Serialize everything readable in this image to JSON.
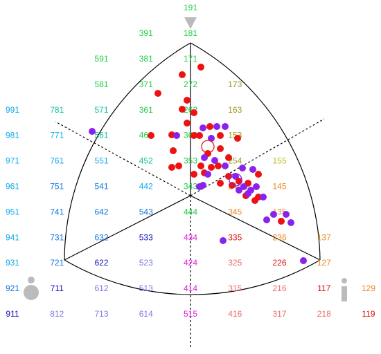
{
  "chart_data": {
    "type": "scatter",
    "xlim": [
      -100,
      100
    ],
    "ylim": [
      -100,
      100
    ],
    "series": [
      {
        "color": "#ee1111",
        "hollow": false,
        "x": [
          -6,
          7.5,
          -23.5,
          -2.5,
          -6,
          2.5,
          -2.5,
          -13.5,
          -28.5,
          14,
          2.5,
          6.5,
          21.5,
          34,
          -12.5,
          12.5,
          21.5,
          27.5,
          -8.5,
          -13.5,
          7.5,
          15,
          2.5,
          10,
          20,
          21.5,
          27.5,
          30,
          35,
          41.5,
          49,
          49,
          40,
          46.5,
          65.5
        ],
        "values": [
          87.5,
          93,
          74,
          69,
          62.5,
          60,
          52.5,
          44,
          43.5,
          50,
          43.5,
          43.5,
          43.5,
          41.5,
          32.5,
          30.5,
          34,
          27.5,
          21.5,
          20.5,
          21.5,
          20.5,
          15.5,
          16.5,
          21.5,
          9,
          14,
          7.5,
          10.5,
          9,
          15.5,
          -1,
          0,
          -3.5,
          -18.5
        ]
      },
      {
        "color": "#8a22ee",
        "hollow": false,
        "x": [
          -71,
          -10,
          9,
          19,
          25,
          15,
          17.5,
          10,
          25,
          9,
          12.5,
          37.5,
          45,
          32.5,
          38.5,
          43.5,
          47.5,
          41.5,
          35,
          52.5,
          55,
          60,
          69,
          72.5,
          23.5,
          81.5,
          6.5
        ],
        "values": [
          46.5,
          43.5,
          49,
          50,
          50,
          41.5,
          25.5,
          27.5,
          21.5,
          7.5,
          15.5,
          20,
          19,
          14,
          6.5,
          4,
          6.5,
          1.5,
          4,
          -1,
          -17.5,
          -13.5,
          -13.5,
          -19.5,
          -32.5,
          -47,
          6.5
        ]
      },
      {
        "color": "#ee1111",
        "hollow": true,
        "x": [
          12.5
        ],
        "values": [
          35.5
        ]
      },
      {
        "color": "#8a22ee",
        "hollow": true,
        "x": [
          32.5
        ],
        "values": [
          11.5
        ]
      }
    ],
    "labels": [
      [
        null,
        null,
        null,
        null,
        {
          "text": "191",
          "color": "#22cc44"
        },
        null,
        null,
        null,
        null
      ],
      [
        null,
        null,
        null,
        {
          "text": "391",
          "color": "#22cc44"
        },
        {
          "text": "181",
          "color": "#22cc44"
        },
        null,
        null,
        null,
        null
      ],
      [
        null,
        null,
        {
          "text": "591",
          "color": "#22cc44"
        },
        {
          "text": "381",
          "color": "#22cc44"
        },
        {
          "text": "171",
          "color": "#22cc44"
        },
        null,
        null,
        null,
        null
      ],
      [
        null,
        null,
        {
          "text": "581",
          "color": "#22cc44"
        },
        {
          "text": "371",
          "color": "#22cc44"
        },
        {
          "text": "272",
          "color": "#22cc44"
        },
        {
          "text": "173",
          "color": "#999922"
        },
        null,
        null,
        null
      ],
      [
        {
          "text": "991",
          "color": "#11aaee"
        },
        {
          "text": "781",
          "color": "#11c0a0"
        },
        {
          "text": "571",
          "color": "#11c0a0"
        },
        {
          "text": "361",
          "color": "#22cc44"
        },
        {
          "text": "262",
          "color": "#22cc44"
        },
        {
          "text": "163",
          "color": "#999922"
        },
        null,
        null,
        null
      ],
      [
        {
          "text": "981",
          "color": "#11aaee"
        },
        {
          "text": "771",
          "color": "#11aaee"
        },
        {
          "text": "561",
          "color": "#11c0a0"
        },
        {
          "text": "462",
          "color": "#22cc44"
        },
        {
          "text": "363",
          "color": "#22cc44"
        },
        {
          "text": "153",
          "color": "#999922"
        },
        null,
        null,
        null
      ],
      [
        {
          "text": "971",
          "color": "#11aaee"
        },
        {
          "text": "761",
          "color": "#11aaee"
        },
        {
          "text": "551",
          "color": "#11aaee"
        },
        {
          "text": "452",
          "color": "#11c0a0"
        },
        {
          "text": "353",
          "color": "#22cc44"
        },
        {
          "text": "254",
          "color": "#999922"
        },
        {
          "text": "155",
          "color": "#bbbb22"
        },
        null,
        null
      ],
      [
        {
          "text": "961",
          "color": "#11aaee"
        },
        {
          "text": "751",
          "color": "#1177dd"
        },
        {
          "text": "541",
          "color": "#1177dd"
        },
        {
          "text": "442",
          "color": "#11aaee"
        },
        {
          "text": "343",
          "color": "#22cc44"
        },
        {
          "text": "244",
          "color": "#ee8822"
        },
        {
          "text": "145",
          "color": "#ee8822"
        },
        null,
        null
      ],
      [
        {
          "text": "951",
          "color": "#11aaee"
        },
        {
          "text": "741",
          "color": "#1177dd"
        },
        {
          "text": "642",
          "color": "#1177dd"
        },
        {
          "text": "543",
          "color": "#1177dd"
        },
        {
          "text": "444",
          "color": "#22cc44"
        },
        {
          "text": "345",
          "color": "#ee8822"
        },
        {
          "text": "135",
          "color": "#ee8822"
        },
        null,
        null
      ],
      [
        {
          "text": "941",
          "color": "#11aaee"
        },
        {
          "text": "731",
          "color": "#1177dd"
        },
        {
          "text": "632",
          "color": "#1177dd"
        },
        {
          "text": "533",
          "color": "#1111bb"
        },
        {
          "text": "434",
          "color": "#e020e0"
        },
        {
          "text": "335",
          "color": "#dd1111"
        },
        {
          "text": "236",
          "color": "#ee8822"
        },
        {
          "text": "137",
          "color": "#ee8822"
        },
        null
      ],
      [
        {
          "text": "931",
          "color": "#11aaee"
        },
        {
          "text": "721",
          "color": "#1177dd"
        },
        {
          "text": "622",
          "color": "#1111bb"
        },
        {
          "text": "523",
          "color": "#7a7ae6"
        },
        {
          "text": "424",
          "color": "#e020e0"
        },
        {
          "text": "325",
          "color": "#ee6a6a"
        },
        {
          "text": "226",
          "color": "#dd1111"
        },
        {
          "text": "127",
          "color": "#ee8822"
        },
        null
      ],
      [
        {
          "text": "921",
          "color": "#1177dd"
        },
        {
          "text": "711",
          "color": "#1111bb"
        },
        {
          "text": "612",
          "color": "#7a7ae6"
        },
        {
          "text": "513",
          "color": "#7a7ae6"
        },
        {
          "text": "414",
          "color": "#e020e0"
        },
        {
          "text": "315",
          "color": "#ee6a6a"
        },
        {
          "text": "216",
          "color": "#ee6a6a"
        },
        {
          "text": "117",
          "color": "#dd1111"
        },
        {
          "text": "129",
          "color": "#ee8822"
        }
      ],
      [
        {
          "text": "911",
          "color": "#1111bb"
        },
        {
          "text": "812",
          "color": "#7a7ae6"
        },
        {
          "text": "713",
          "color": "#7a7ae6"
        },
        {
          "text": "614",
          "color": "#7a7ae6"
        },
        {
          "text": "515",
          "color": "#e020e0"
        },
        {
          "text": "416",
          "color": "#ee6a6a"
        },
        {
          "text": "317",
          "color": "#ee6a6a"
        },
        {
          "text": "218",
          "color": "#ee6a6a"
        },
        {
          "text": "119",
          "color": "#dd1111"
        }
      ]
    ]
  }
}
